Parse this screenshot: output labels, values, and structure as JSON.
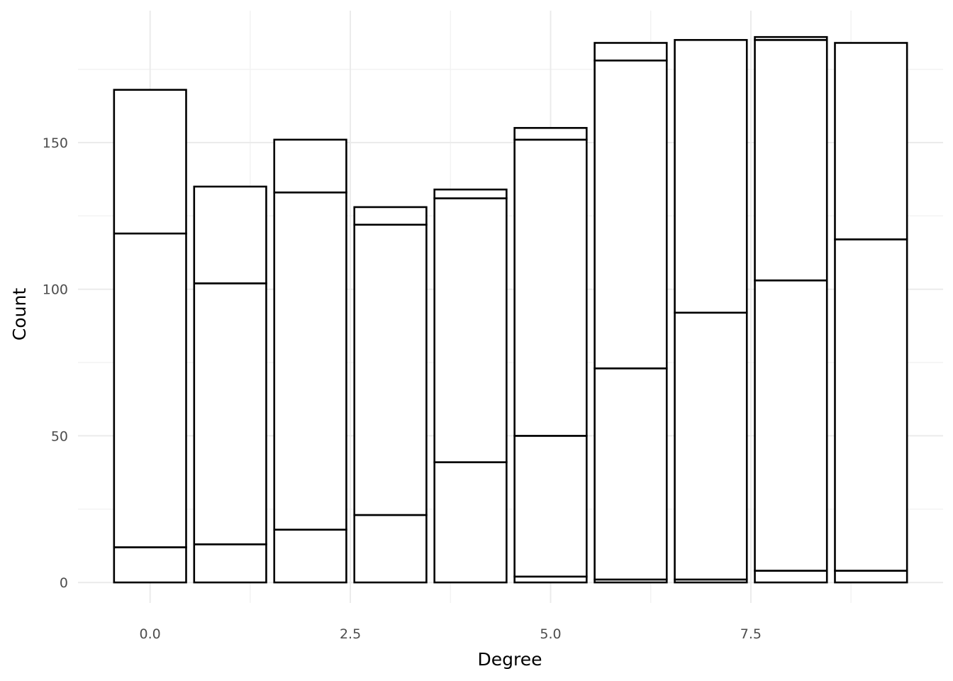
{
  "chart_data": {
    "type": "bar",
    "stacked": true,
    "title": "",
    "xlabel": "Degree",
    "ylabel": "Count",
    "x": [
      0,
      1,
      2,
      3,
      4,
      5,
      6,
      7,
      8,
      9
    ],
    "stacks": [
      [
        12,
        107,
        49
      ],
      [
        13,
        89,
        33
      ],
      [
        18,
        115,
        18
      ],
      [
        23,
        99,
        6
      ],
      [
        41,
        90,
        3
      ],
      [
        2,
        48,
        101,
        4
      ],
      [
        1,
        72,
        105,
        6
      ],
      [
        1,
        91,
        93
      ],
      [
        4,
        99,
        82,
        1
      ],
      [
        4,
        113,
        67
      ]
    ],
    "totals": [
      168,
      135,
      151,
      128,
      134,
      155,
      184,
      185,
      186,
      184
    ],
    "xlim": [
      -0.9,
      9.9
    ],
    "ylim": [
      -7,
      195
    ],
    "x_ticks": [
      0.0,
      2.5,
      5.0,
      7.5
    ],
    "x_tick_labels": [
      "0.0",
      "2.5",
      "5.0",
      "7.5"
    ],
    "y_ticks": [
      0,
      50,
      100,
      150
    ],
    "y_tick_labels": [
      "0",
      "50",
      "100",
      "150"
    ],
    "grid": true,
    "legend": "none",
    "colors": {
      "fill": "#ffffff",
      "outline": "#000000",
      "grid": "#ebebeb"
    }
  }
}
